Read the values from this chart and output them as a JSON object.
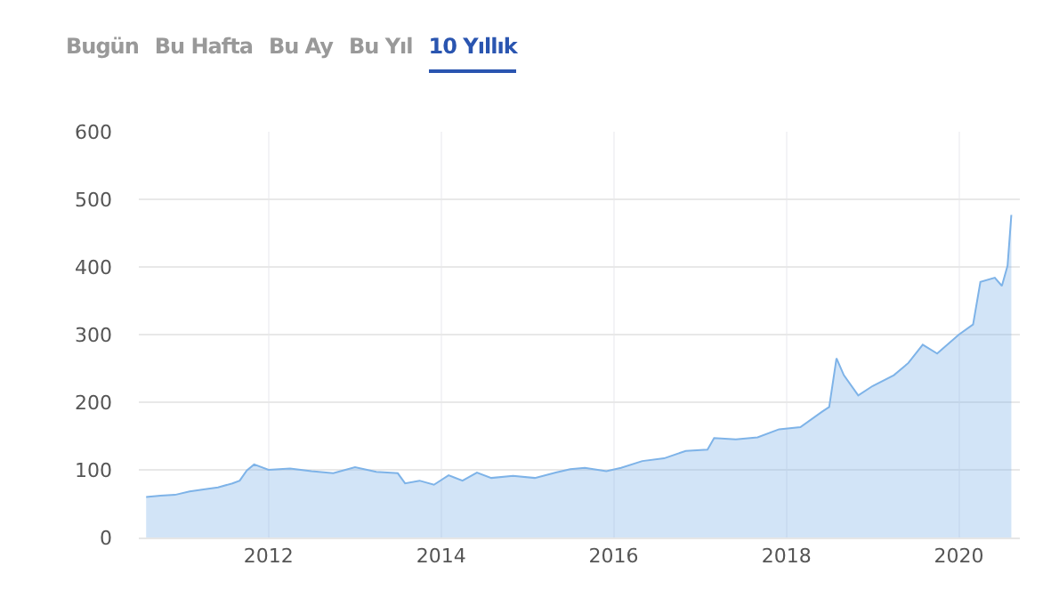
{
  "chart_data": {
    "type": "area",
    "annotations": [
      "Bugün",
      "Bu Hafta",
      "Bu Ay",
      "Bu Yıl",
      "10 Yıllık"
    ],
    "x": [
      "2010-08",
      "2010-10",
      "2010-12",
      "2011-02",
      "2011-04",
      "2011-06",
      "2011-08",
      "2011-09",
      "2011-10",
      "2011-11",
      "2012-01",
      "2012-04",
      "2012-07",
      "2012-10",
      "2013-01",
      "2013-04",
      "2013-07",
      "2013-08",
      "2013-10",
      "2013-12",
      "2014-02",
      "2014-04",
      "2014-06",
      "2014-08",
      "2014-11",
      "2015-02",
      "2015-05",
      "2015-07",
      "2015-09",
      "2015-12",
      "2016-02",
      "2016-05",
      "2016-08",
      "2016-11",
      "2017-02",
      "2017-03",
      "2017-06",
      "2017-09",
      "2017-12",
      "2018-03",
      "2018-06",
      "2018-07",
      "2018-08",
      "2018-09",
      "2018-11",
      "2019-01",
      "2019-04",
      "2019-06",
      "2019-08",
      "2019-10",
      "2020-01",
      "2020-03",
      "2020-04",
      "2020-06",
      "2020-07",
      "2020-07-25",
      "2020-08-10"
    ],
    "series": [
      {
        "color": "#7eb3e8",
        "values": [
          60,
          62,
          63,
          68,
          71,
          74,
          80,
          84,
          99,
          108,
          100,
          102,
          98,
          95,
          104,
          97,
          95,
          80,
          84,
          78,
          92,
          84,
          96,
          88,
          91,
          88,
          96,
          101,
          103,
          98,
          103,
          113,
          117,
          128,
          130,
          147,
          145,
          148,
          160,
          163,
          186,
          193,
          265,
          240,
          210,
          224,
          240,
          258,
          285,
          272,
          300,
          315,
          378,
          384,
          372,
          402,
          477
        ]
      }
    ],
    "xlim": [
      "2010-07-01",
      "2020-09-15"
    ],
    "xticks": [
      {
        "value": "2012",
        "label": "2012"
      },
      {
        "value": "2014",
        "label": "2014"
      },
      {
        "value": "2016",
        "label": "2016"
      },
      {
        "value": "2018",
        "label": "2018"
      },
      {
        "value": "2020",
        "label": "2020"
      }
    ],
    "ylim": [
      0,
      600
    ],
    "yticks": [
      0,
      100,
      200,
      300,
      400,
      500,
      600
    ],
    "grid": true
  }
}
